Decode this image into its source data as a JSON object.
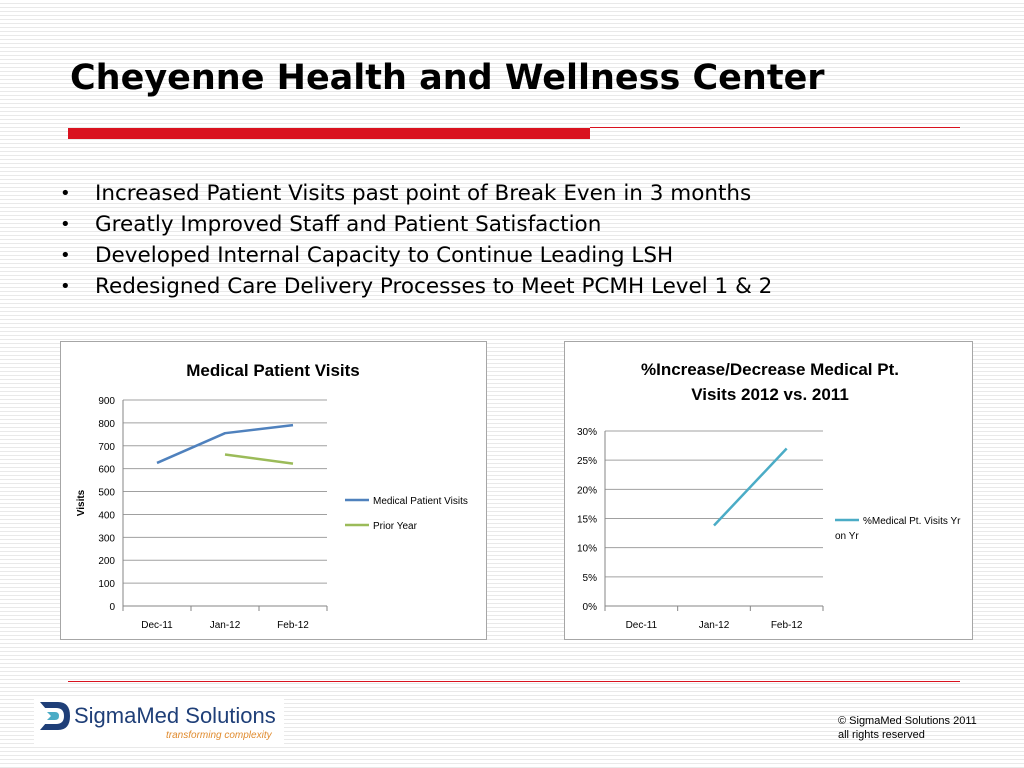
{
  "slide": {
    "title": "Cheyenne Health and Wellness Center",
    "bullets": [
      "Increased Patient Visits past point of Break Even in 3 months",
      "Greatly Improved Staff and Patient Satisfaction",
      "Developed Internal Capacity to Continue Leading LSH",
      "Redesigned Care Delivery Processes to Meet PCMH Level 1 & 2"
    ]
  },
  "colors": {
    "accent_red": "#d9121f",
    "series_blue": "#4f81bd",
    "series_green": "#9bbb59",
    "series_teal": "#4bacc6"
  },
  "chart_data": [
    {
      "type": "line",
      "title": "Medical Patient Visits",
      "xlabel": "",
      "ylabel": "Visits",
      "categories": [
        "Dec-11",
        "Jan-12",
        "Feb-12"
      ],
      "ylim": [
        0,
        900
      ],
      "yticks": [
        0,
        100,
        200,
        300,
        400,
        500,
        600,
        700,
        800,
        900
      ],
      "ytick_labels": [
        "0",
        "100",
        "200",
        "300",
        "400",
        "500",
        "600",
        "700",
        "800",
        "900"
      ],
      "grid": true,
      "legend": "right",
      "series": [
        {
          "name": "Medical Patient Visits",
          "color": "#4f81bd",
          "values": [
            625,
            755,
            790
          ]
        },
        {
          "name": "Prior Year",
          "color": "#9bbb59",
          "values": [
            null,
            662,
            622
          ]
        }
      ]
    },
    {
      "type": "line",
      "title": "%Increase/Decrease Medical  Pt. Visits 2012 vs. 2011",
      "xlabel": "",
      "ylabel": "",
      "categories": [
        "Dec-11",
        "Jan-12",
        "Feb-12"
      ],
      "ylim": [
        0,
        0.3
      ],
      "yticks": [
        0,
        0.05,
        0.1,
        0.15,
        0.2,
        0.25,
        0.3
      ],
      "ytick_labels": [
        "0%",
        "5%",
        "10%",
        "15%",
        "20%",
        "25%",
        "30%"
      ],
      "grid": true,
      "legend": "right",
      "series": [
        {
          "name": "%Medical Pt. Visits Yr on Yr",
          "color": "#4bacc6",
          "values": [
            null,
            0.138,
            0.27
          ]
        }
      ]
    }
  ],
  "footer": {
    "logo_name": "SigmaMed Solutions",
    "logo_tagline": "transforming complexity",
    "copyright_line1": "© SigmaMed Solutions 2011",
    "copyright_line2": "all rights reserved"
  }
}
